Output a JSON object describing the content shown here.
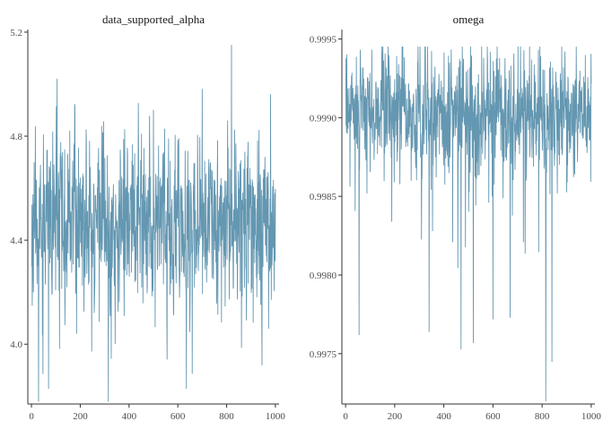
{
  "chart_data": [
    {
      "type": "line",
      "title": "data_supported_alpha",
      "xlabel": "",
      "ylabel": "",
      "xlim": [
        -15,
        1015
      ],
      "ylim": [
        3.77,
        5.21
      ],
      "x_ticks": [
        0,
        200,
        400,
        600,
        800,
        1000
      ],
      "x_tick_labels": [
        "0",
        "200",
        "400",
        "600",
        "800",
        "1000"
      ],
      "y_ticks": [
        4.0,
        4.4,
        4.8,
        5.2
      ],
      "y_tick_labels": [
        "4.0",
        "4.4",
        "4.8",
        "5.2"
      ],
      "grid": false,
      "legend": "none",
      "color": "#6497B1",
      "trace": {
        "n": 1000,
        "x_start": 1,
        "mean": 4.47,
        "sd": 0.15,
        "min": 3.78,
        "max": 5.15,
        "seed": 11,
        "extremes": [
          {
            "x": 70,
            "y": 3.83
          },
          {
            "x": 105,
            "y": 5.02
          },
          {
            "x": 315,
            "y": 3.78
          },
          {
            "x": 500,
            "y": 4.9
          },
          {
            "x": 635,
            "y": 3.83
          },
          {
            "x": 700,
            "y": 4.98
          },
          {
            "x": 820,
            "y": 5.15
          },
          {
            "x": 945,
            "y": 3.92
          },
          {
            "x": 980,
            "y": 4.96
          }
        ]
      }
    },
    {
      "type": "line",
      "title": "omega",
      "xlabel": "",
      "ylabel": "",
      "xlim": [
        -15,
        1015
      ],
      "ylim": [
        0.99718,
        0.99956
      ],
      "x_ticks": [
        0,
        200,
        400,
        600,
        800,
        1000
      ],
      "x_tick_labels": [
        "0",
        "200",
        "400",
        "600",
        "800",
        "1000"
      ],
      "y_ticks": [
        0.9975,
        0.998,
        0.9985,
        0.999,
        0.9995
      ],
      "y_tick_labels": [
        "0.9975",
        "0.9980",
        "0.9985",
        "0.9990",
        "0.9995"
      ],
      "grid": false,
      "legend": "none",
      "color": "#6497B1",
      "trace": {
        "n": 1000,
        "x_start": 1,
        "mean": 0.99902,
        "sd": 0.00018,
        "min": 0.9972,
        "max": 0.99945,
        "seed": 23,
        "extremes": [
          {
            "x": 55,
            "y": 0.99762
          },
          {
            "x": 340,
            "y": 0.99764
          },
          {
            "x": 470,
            "y": 0.99753
          },
          {
            "x": 520,
            "y": 0.99757
          },
          {
            "x": 600,
            "y": 0.99772
          },
          {
            "x": 670,
            "y": 0.99773
          },
          {
            "x": 815,
            "y": 0.9972
          },
          {
            "x": 840,
            "y": 0.99745
          },
          {
            "x": 880,
            "y": 0.99945
          },
          {
            "x": 60,
            "y": 0.99943
          }
        ]
      }
    }
  ]
}
